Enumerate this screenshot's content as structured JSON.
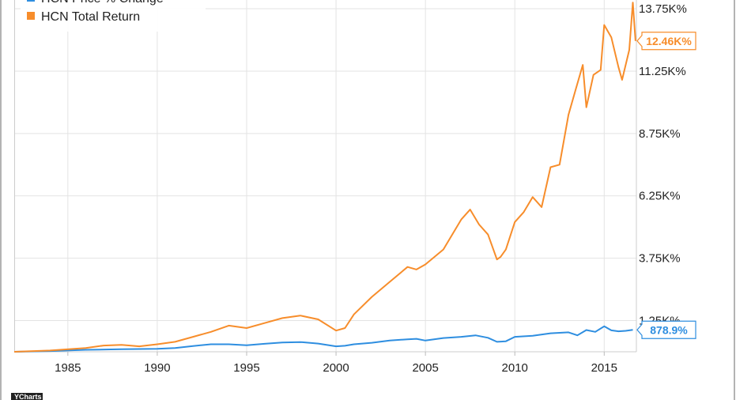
{
  "chart_data": {
    "type": "line",
    "x_ticks": [
      "1985",
      "1990",
      "1995",
      "2000",
      "2005",
      "2010",
      "2015"
    ],
    "y_ticks": [
      "1.25K%",
      "3.75K%",
      "6.25K%",
      "8.75K%",
      "11.25K%",
      "13.75K%"
    ],
    "xlim": [
      1982.0,
      2016.8
    ],
    "ylim": [
      0,
      14100
    ],
    "grid": true,
    "legend_position": "top-left",
    "legend": [
      "HCN Price % Change",
      "HCN Total Return"
    ],
    "series": [
      {
        "name": "HCN Price % Change",
        "color": "#2e8ee0",
        "end_label": "878.9%",
        "x": [
          1982.0,
          1984.0,
          1986.0,
          1988.0,
          1989.0,
          1990.0,
          1991.0,
          1992.0,
          1993.0,
          1994.0,
          1995.0,
          1996.0,
          1997.0,
          1998.0,
          1999.0,
          2000.0,
          2000.5,
          2001.0,
          2002.0,
          2003.0,
          2004.0,
          2004.5,
          2005.0,
          2006.0,
          2007.0,
          2007.8,
          2008.5,
          2009.0,
          2009.5,
          2010.0,
          2011.0,
          2012.0,
          2013.0,
          2013.5,
          2014.0,
          2014.5,
          2015.0,
          2015.4,
          2015.8,
          2016.2,
          2016.6
        ],
        "y": [
          0,
          30,
          80,
          100,
          110,
          120,
          150,
          230,
          300,
          300,
          260,
          320,
          370,
          390,
          330,
          220,
          240,
          300,
          360,
          450,
          500,
          520,
          450,
          550,
          600,
          660,
          560,
          400,
          420,
          600,
          640,
          740,
          780,
          660,
          870,
          800,
          1020,
          860,
          820,
          840,
          879
        ]
      },
      {
        "name": "HCN Total Return",
        "color": "#f78d2b",
        "end_label": "12.46K%",
        "x": [
          1982.0,
          1984.0,
          1986.0,
          1987.0,
          1988.0,
          1989.0,
          1990.0,
          1991.0,
          1992.0,
          1993.0,
          1994.0,
          1995.0,
          1996.0,
          1997.0,
          1998.0,
          1999.0,
          2000.0,
          2000.5,
          2001.0,
          2002.0,
          2003.0,
          2004.0,
          2004.5,
          2005.0,
          2006.0,
          2007.0,
          2007.5,
          2008.0,
          2008.5,
          2009.0,
          2009.2,
          2009.5,
          2010.0,
          2010.5,
          2011.0,
          2011.5,
          2012.0,
          2012.5,
          2013.0,
          2013.4,
          2013.8,
          2014.0,
          2014.4,
          2014.8,
          2015.0,
          2015.4,
          2015.8,
          2016.0,
          2016.4,
          2016.6,
          2016.75
        ],
        "y": [
          0,
          50,
          150,
          250,
          280,
          220,
          300,
          400,
          600,
          800,
          1050,
          950,
          1150,
          1350,
          1450,
          1300,
          850,
          950,
          1500,
          2200,
          2800,
          3400,
          3300,
          3500,
          4100,
          5300,
          5700,
          5100,
          4700,
          3700,
          3800,
          4100,
          5200,
          5600,
          6200,
          5800,
          7400,
          7500,
          9500,
          10500,
          11500,
          9800,
          11100,
          11300,
          13100,
          12600,
          11400,
          10900,
          12100,
          14000,
          12460
        ]
      }
    ]
  },
  "logo": {
    "text": "YCharts"
  }
}
